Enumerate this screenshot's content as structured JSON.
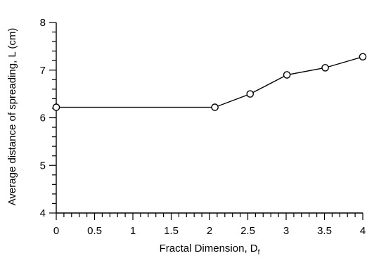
{
  "chart_data": {
    "type": "line",
    "xlabel": "Fractal Dimension, D",
    "xlabel_subscript": "f",
    "ylabel": "Average distance of spreading, L (cm)",
    "xlim": [
      0,
      4
    ],
    "ylim": [
      4,
      8
    ],
    "x_ticks": [
      0,
      0.5,
      1,
      1.5,
      2,
      2.5,
      3,
      3.5,
      4
    ],
    "x_tick_labels": [
      "0",
      "0.5",
      "1",
      "1.5",
      "2",
      "2.5",
      "3",
      "3.5",
      "4"
    ],
    "y_ticks": [
      4,
      5,
      6,
      7,
      8
    ],
    "y_tick_labels": [
      "4",
      "5",
      "6",
      "7",
      "8"
    ],
    "x_minor_step": 0.1,
    "y_minor_step": 0.2,
    "grid": false,
    "marker": "open-circle",
    "line_color": "#000000",
    "series": [
      {
        "x": [
          0,
          2.07,
          2.53,
          3.01,
          3.51,
          4.0
        ],
        "y": [
          6.22,
          6.22,
          6.5,
          6.9,
          7.05,
          7.28
        ]
      }
    ]
  }
}
